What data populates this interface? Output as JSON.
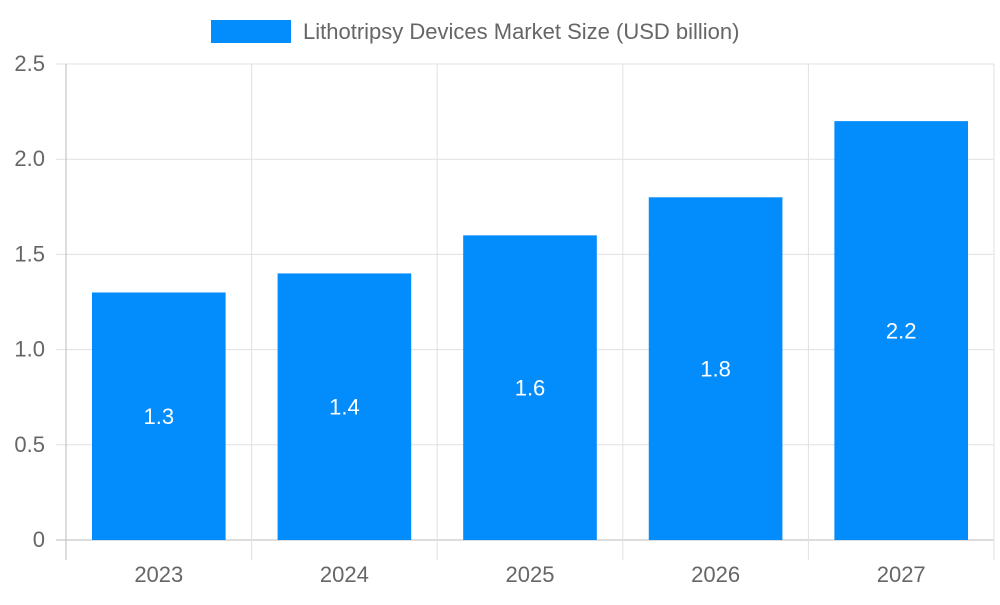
{
  "chart_data": {
    "type": "bar",
    "title": "",
    "xlabel": "",
    "ylabel": "",
    "categories": [
      "2023",
      "2024",
      "2025",
      "2026",
      "2027"
    ],
    "series": [
      {
        "name": "Lithotripsy Devices Market Size (USD billion)",
        "values": [
          1.3,
          1.4,
          1.6,
          1.8,
          2.2
        ],
        "color": "#038cfc"
      }
    ],
    "data_labels": [
      "1.3",
      "1.4",
      "1.6",
      "1.8",
      "2.2"
    ],
    "ylim": [
      0,
      2.5
    ],
    "yticks": [
      "0",
      "0.5",
      "1.0",
      "1.5",
      "2.0",
      "2.5"
    ],
    "ytick_values": [
      0,
      0.5,
      1.0,
      1.5,
      2.0,
      2.5
    ],
    "grid": true,
    "legend": "top-center"
  }
}
